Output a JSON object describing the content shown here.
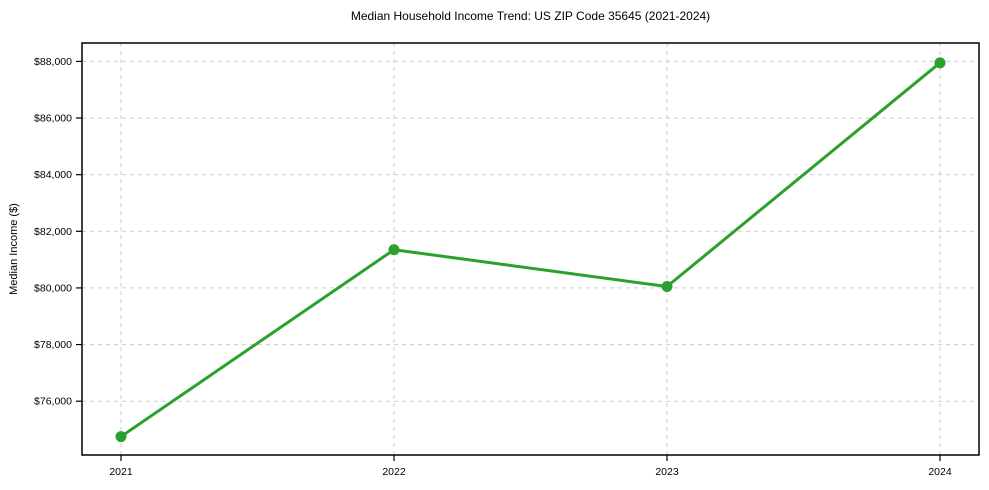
{
  "title": "Median Household Income Trend: US ZIP Code 35645 (2021-2024)",
  "chart_data": {
    "type": "line",
    "title": "Median Household Income Trend: US ZIP Code 35645 (2021-2024)",
    "xlabel": "",
    "ylabel": "Median Income ($)",
    "categories": [
      "2021",
      "2022",
      "2023",
      "2024"
    ],
    "series": [
      {
        "name": "Median Income",
        "values": [
          74750,
          81350,
          80050,
          87950
        ]
      }
    ],
    "y_ticks": [
      76000,
      78000,
      80000,
      82000,
      84000,
      86000,
      88000
    ],
    "y_tick_labels": [
      "$76,000",
      "$78,000",
      "$80,000",
      "$82,000",
      "$84,000",
      "$86,000",
      "$88,000"
    ],
    "ylim": [
      74100,
      88650
    ],
    "grid": true,
    "grid_style": "dashed",
    "legend_position": "none",
    "marker": "circle"
  },
  "colors": {
    "line": "#2ca02c",
    "marker": "#2ca02c",
    "grid": "#cccccc",
    "spine": "#000000",
    "background": "#ffffff",
    "text": "#000000"
  }
}
